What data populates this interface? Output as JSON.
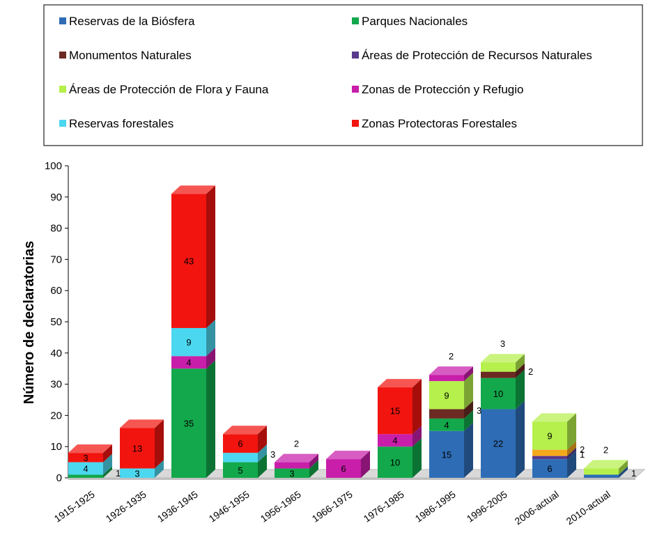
{
  "chart_data": {
    "type": "bar",
    "stacked": true,
    "ylabel": "Número de declaratorias",
    "ylim": [
      0,
      100
    ],
    "yticks": [
      0,
      10,
      20,
      30,
      40,
      50,
      60,
      70,
      80,
      90,
      100
    ],
    "legend_position": "top",
    "categories": [
      "1915-1925",
      "1926-1935",
      "1936-1945",
      "1946-1955",
      "1956-1965",
      "1966-1975",
      "1976-1985",
      "1986-1995",
      "1996-2005",
      "2006-actual",
      "2010-actual"
    ],
    "legend": [
      {
        "name": "Reservas de la Biósfera",
        "color": "#2E6DB5"
      },
      {
        "name": "Parques Nacionales",
        "color": "#12A84B"
      },
      {
        "name": "Monumentos Naturales",
        "color": "#6B2A22"
      },
      {
        "name": "Áreas de Protección de Recursos Naturales",
        "color": "#5A3A8C"
      },
      {
        "name": "Áreas de Protección de Flora y Fauna",
        "color": "#B5F04C"
      },
      {
        "name": "Zonas de Protección y Refugio",
        "color": "#C81EAA"
      },
      {
        "name": "Reservas forestales",
        "color": "#4CD7F0"
      },
      {
        "name": "Zonas Protectoras Forestales",
        "color": "#F2140F"
      }
    ],
    "bars": [
      {
        "segments": [
          {
            "color": "#12A84B",
            "value": 1,
            "label": "1",
            "label_pos": "right"
          },
          {
            "color": "#4CD7F0",
            "value": 4,
            "label": "4",
            "label_pos": "inside"
          },
          {
            "color": "#F2140F",
            "value": 3,
            "label": "3",
            "label_pos": "inside"
          }
        ]
      },
      {
        "segments": [
          {
            "color": "#4CD7F0",
            "value": 3,
            "label": "3",
            "label_pos": "inside"
          },
          {
            "color": "#F2140F",
            "value": 13,
            "label": "13",
            "label_pos": "inside"
          }
        ]
      },
      {
        "segments": [
          {
            "color": "#12A84B",
            "value": 35,
            "label": "35",
            "label_pos": "inside"
          },
          {
            "color": "#C81EAA",
            "value": 4,
            "label": "4",
            "label_pos": "inside"
          },
          {
            "color": "#4CD7F0",
            "value": 9,
            "label": "9",
            "label_pos": "inside"
          },
          {
            "color": "#F2140F",
            "value": 43,
            "label": "43",
            "label_pos": "inside"
          }
        ]
      },
      {
        "segments": [
          {
            "color": "#12A84B",
            "value": 5,
            "label": "5",
            "label_pos": "inside"
          },
          {
            "color": "#4CD7F0",
            "value": 3,
            "label": "3",
            "label_pos": "right"
          },
          {
            "color": "#F2140F",
            "value": 6,
            "label": "6",
            "label_pos": "inside"
          }
        ]
      },
      {
        "segments": [
          {
            "color": "#12A84B",
            "value": 3,
            "label": "3",
            "label_pos": "inside"
          },
          {
            "color": "#C81EAA",
            "value": 2,
            "label": "2",
            "label_pos": "above"
          }
        ]
      },
      {
        "segments": [
          {
            "color": "#C81EAA",
            "value": 6,
            "label": "6",
            "label_pos": "inside"
          }
        ]
      },
      {
        "segments": [
          {
            "color": "#12A84B",
            "value": 10,
            "label": "10",
            "label_pos": "inside"
          },
          {
            "color": "#C81EAA",
            "value": 4,
            "label": "4",
            "label_pos": "inside"
          },
          {
            "color": "#F2140F",
            "value": 15,
            "label": "15",
            "label_pos": "inside"
          }
        ]
      },
      {
        "segments": [
          {
            "color": "#2E6DB5",
            "value": 15,
            "label": "15",
            "label_pos": "inside"
          },
          {
            "color": "#12A84B",
            "value": 4,
            "label": "4",
            "label_pos": "inside"
          },
          {
            "color": "#6B2A22",
            "value": 3,
            "label": "3",
            "label_pos": "right"
          },
          {
            "color": "#B5F04C",
            "value": 9,
            "label": "9",
            "label_pos": "inside"
          },
          {
            "color": "#C81EAA",
            "value": 2,
            "label": "2",
            "label_pos": "above"
          }
        ]
      },
      {
        "segments": [
          {
            "color": "#2E6DB5",
            "value": 22,
            "label": "22",
            "label_pos": "inside"
          },
          {
            "color": "#12A84B",
            "value": 10,
            "label": "10",
            "label_pos": "inside"
          },
          {
            "color": "#6B2A22",
            "value": 2,
            "label": "2",
            "label_pos": "right"
          },
          {
            "color": "#B5F04C",
            "value": 3,
            "label": "3",
            "label_pos": "above"
          }
        ]
      },
      {
        "segments": [
          {
            "color": "#2E6DB5",
            "value": 6,
            "label": "6",
            "label_pos": "inside"
          },
          {
            "color": "#5A3A8C",
            "value": 1,
            "label": "1",
            "label_pos": "right"
          },
          {
            "color": "#F5A81C",
            "value": 2,
            "label": "2",
            "label_pos": "right"
          },
          {
            "color": "#B5F04C",
            "value": 9,
            "label": "9",
            "label_pos": "inside"
          }
        ]
      },
      {
        "segments": [
          {
            "color": "#2E6DB5",
            "value": 1,
            "label": "1",
            "label_pos": "right"
          },
          {
            "color": "#B5F04C",
            "value": 2,
            "label": "2",
            "label_pos": "above"
          }
        ]
      }
    ]
  }
}
